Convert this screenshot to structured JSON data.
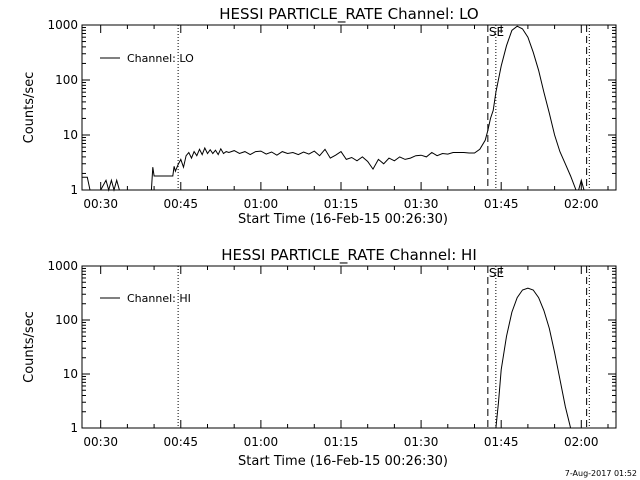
{
  "chart_data": [
    {
      "type": "line",
      "title": "HESSI PARTICLE_RATE Channel: LO",
      "xlabel": "Start Time (16-Feb-15 00:26:30)",
      "ylabel": "Counts/sec",
      "y_scale": "log",
      "ylim": [
        1,
        1000
      ],
      "xlim": [
        "00:26:30",
        "02:06:30"
      ],
      "x_ticks": [
        "00:30",
        "00:45",
        "01:00",
        "01:15",
        "01:30",
        "01:45",
        "02:00"
      ],
      "y_ticks": [
        "1",
        "10",
        "100",
        "1000"
      ],
      "legend": {
        "position": "top-left",
        "entries": [
          "Channel: LO"
        ]
      },
      "markers": [
        {
          "time": "00:44:30",
          "style": "dotted"
        },
        {
          "time": "01:42:30",
          "style": "dashed",
          "label": "SE"
        },
        {
          "time": "01:44:00",
          "style": "dotted"
        },
        {
          "time": "02:01:00",
          "style": "dashed"
        },
        {
          "time": "02:01:30",
          "style": "dotted"
        }
      ],
      "series": [
        {
          "x": [
            "00:26:30",
            "00:27:30",
            "00:28:00",
            "00:28:30",
            "00:30:00",
            "00:31:00",
            "00:31:30",
            "00:32:00",
            "00:32:30",
            "00:33:00",
            "00:33:30",
            "00:34:00",
            "00:39:30",
            "00:39:45",
            "00:40:00",
            "00:43:30",
            "00:43:45",
            "00:44:00",
            "00:44:30",
            "00:45:00",
            "00:45:30",
            "00:46:00",
            "00:46:30",
            "00:47:00",
            "00:47:30",
            "00:48:00",
            "00:48:30",
            "00:49:00",
            "00:49:30",
            "00:50:00",
            "00:50:30",
            "00:51:00",
            "00:51:30",
            "00:52:00",
            "00:52:30",
            "00:53:00",
            "00:53:30",
            "00:54:00",
            "00:55:00",
            "00:56:00",
            "00:57:00",
            "00:58:00",
            "00:59:00",
            "01:00:00",
            "01:01:00",
            "01:02:00",
            "01:03:00",
            "01:04:00",
            "01:05:00",
            "01:06:00",
            "01:07:00",
            "01:08:00",
            "01:09:00",
            "01:10:00",
            "01:11:00",
            "01:12:00",
            "01:13:00",
            "01:14:00",
            "01:15:00",
            "01:16:00",
            "01:17:00",
            "01:18:00",
            "01:19:00",
            "01:20:00",
            "01:21:00",
            "01:22:00",
            "01:23:00",
            "01:24:00",
            "01:25:00",
            "01:26:00",
            "01:27:00",
            "01:28:00",
            "01:29:00",
            "01:30:00",
            "01:31:00",
            "01:32:00",
            "01:33:00",
            "01:34:00",
            "01:35:00",
            "01:36:00",
            "01:37:00",
            "01:38:00",
            "01:39:00",
            "01:40:00",
            "01:41:00",
            "01:42:00",
            "01:42:30",
            "01:43:00",
            "01:43:30",
            "01:44:00",
            "01:45:00",
            "01:46:00",
            "01:47:00",
            "01:48:00",
            "01:49:00",
            "01:50:00",
            "01:51:00",
            "01:52:00",
            "01:53:00",
            "01:54:00",
            "01:55:00",
            "01:56:00",
            "01:57:00",
            "01:58:00",
            "01:59:00",
            "01:59:30",
            "02:00:00",
            "02:00:30",
            "02:01:00",
            "02:01:30"
          ],
          "y": [
            1.7,
            1.7,
            1,
            1,
            1,
            1.5,
            1,
            1.5,
            1,
            1.5,
            1,
            1,
            1,
            2.6,
            1.8,
            1.8,
            2.7,
            2.2,
            2.9,
            3.6,
            2.6,
            4.2,
            4.8,
            3.8,
            5.0,
            4.2,
            5.5,
            4.4,
            5.8,
            4.6,
            5.4,
            4.6,
            5.3,
            4.4,
            5.6,
            4.6,
            5.0,
            4.8,
            5.2,
            4.6,
            5.0,
            4.4,
            5.0,
            5.1,
            4.5,
            4.9,
            4.3,
            5.0,
            4.6,
            4.8,
            4.4,
            4.9,
            4.5,
            5.1,
            4.2,
            5.5,
            3.8,
            4.3,
            5.0,
            3.6,
            3.9,
            3.4,
            4.0,
            3.3,
            2.4,
            3.6,
            3.0,
            3.8,
            3.4,
            4.0,
            3.6,
            3.8,
            4.2,
            4.3,
            4.0,
            4.8,
            4.2,
            4.6,
            4.5,
            4.8,
            4.8,
            4.8,
            4.7,
            4.7,
            5.5,
            8.0,
            12,
            20,
            28,
            60,
            180,
            420,
            800,
            950,
            850,
            600,
            320,
            150,
            60,
            25,
            10,
            5,
            3,
            1.8,
            1,
            1,
            1.5,
            1,
            1,
            1
          ]
        }
      ]
    },
    {
      "type": "line",
      "title": "HESSI PARTICLE_RATE Channel: HI",
      "xlabel": "Start Time (16-Feb-15 00:26:30)",
      "ylabel": "Counts/sec",
      "y_scale": "log",
      "ylim": [
        1,
        1000
      ],
      "xlim": [
        "00:26:30",
        "02:06:30"
      ],
      "x_ticks": [
        "00:30",
        "00:45",
        "01:00",
        "01:15",
        "01:30",
        "01:45",
        "02:00"
      ],
      "y_ticks": [
        "1",
        "10",
        "100",
        "1000"
      ],
      "legend": {
        "position": "top-left",
        "entries": [
          "Channel: HI"
        ]
      },
      "markers": [
        {
          "time": "00:44:30",
          "style": "dotted"
        },
        {
          "time": "01:42:30",
          "style": "dashed",
          "label": "SE"
        },
        {
          "time": "01:44:00",
          "style": "dotted"
        },
        {
          "time": "02:01:00",
          "style": "dashed"
        },
        {
          "time": "02:01:30",
          "style": "dotted"
        }
      ],
      "series": [
        {
          "x": [
            "01:44:00",
            "01:44:30",
            "01:45:00",
            "01:46:00",
            "01:47:00",
            "01:48:00",
            "01:49:00",
            "01:50:00",
            "01:51:00",
            "01:52:00",
            "01:53:00",
            "01:54:00",
            "01:55:00",
            "01:56:00",
            "01:57:00",
            "01:58:00"
          ],
          "y": [
            1,
            3,
            12,
            50,
            140,
            260,
            360,
            390,
            360,
            260,
            150,
            70,
            25,
            8,
            2.5,
            1
          ]
        }
      ]
    }
  ],
  "footer": {
    "date_stamp": "7-Aug-2017 01:52"
  }
}
